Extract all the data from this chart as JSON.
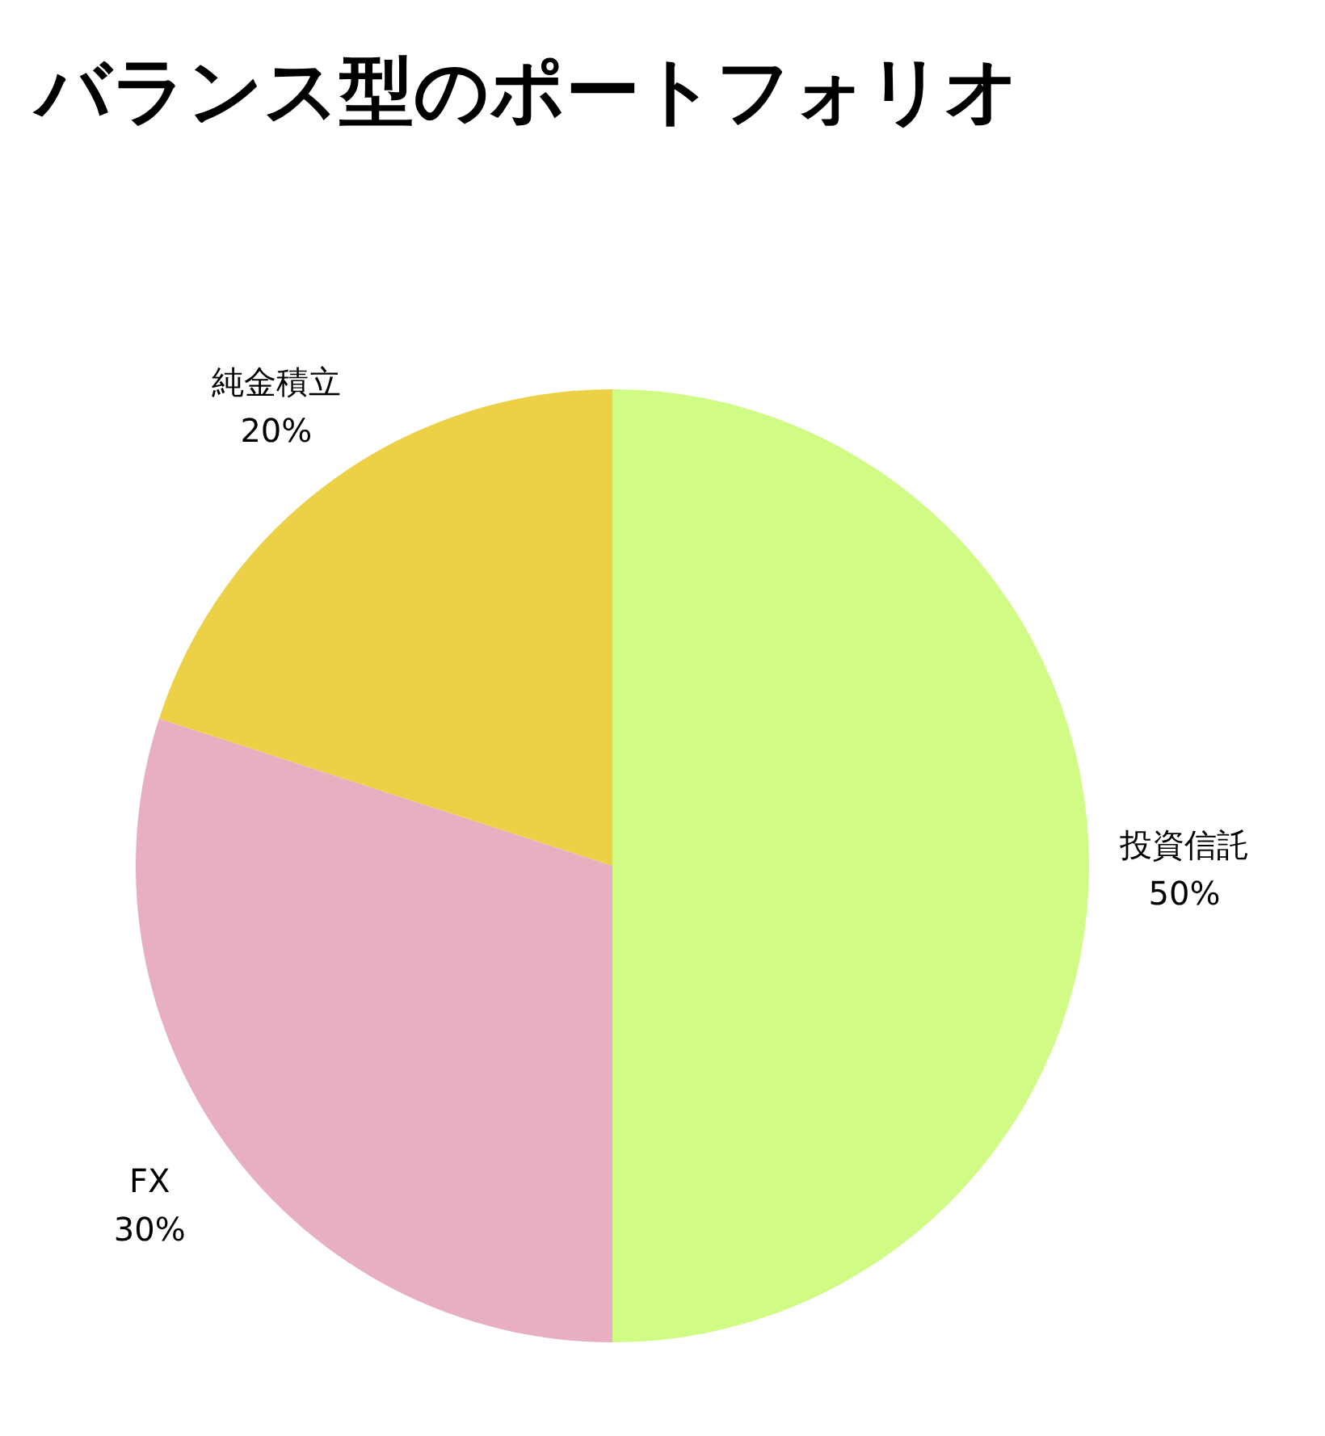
{
  "chart_data": {
    "type": "pie",
    "title": "バランス型のポートフォリオ",
    "categories": [
      "投資信託",
      "FX",
      "純金積立"
    ],
    "values": [
      50,
      30,
      20
    ],
    "colors": [
      "#d0fb84",
      "#e8afc0",
      "#ecd147"
    ],
    "value_labels": [
      "50%",
      "30%",
      "20%"
    ]
  }
}
